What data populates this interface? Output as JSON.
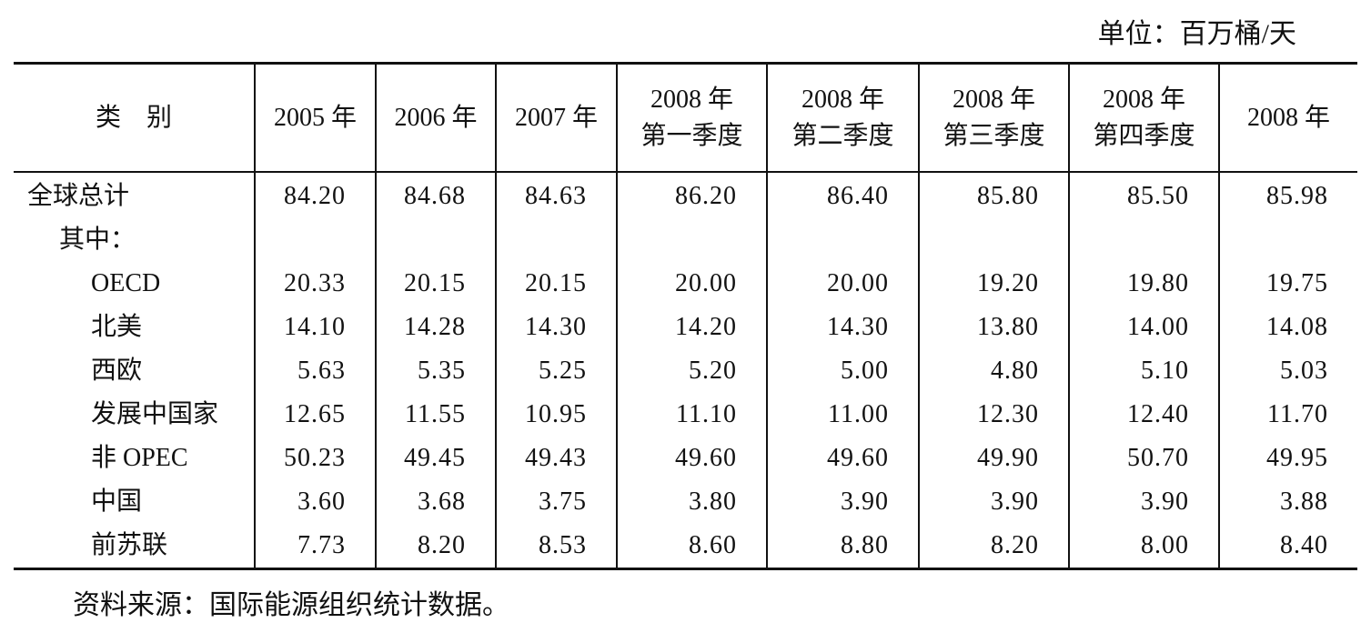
{
  "unit": "单位：百万桶/天",
  "table": {
    "header": [
      "类　别",
      "2005 年",
      "2006 年",
      "2007 年",
      "2008 年\n第一季度",
      "2008 年\n第二季度",
      "2008 年\n第三季度",
      "2008 年\n第四季度",
      "2008 年"
    ],
    "rows": [
      [
        "全球总计",
        "84.20",
        "84.68",
        "84.63",
        "86.20",
        "86.40",
        "85.80",
        "85.50",
        "85.98"
      ],
      [
        "其中："
      ],
      [
        "OECD",
        "20.33",
        "20.15",
        "20.15",
        "20.00",
        "20.00",
        "19.20",
        "19.80",
        "19.75"
      ],
      [
        "北美",
        "14.10",
        "14.28",
        "14.30",
        "14.20",
        "14.30",
        "13.80",
        "14.00",
        "14.08"
      ],
      [
        "西欧",
        "5.63",
        "5.35",
        "5.25",
        "5.20",
        "5.00",
        "4.80",
        "5.10",
        "5.03"
      ],
      [
        "发展中国家",
        "12.65",
        "11.55",
        "10.95",
        "11.10",
        "11.00",
        "12.30",
        "12.40",
        "11.70"
      ],
      [
        "非 OPEC",
        "50.23",
        "49.45",
        "49.43",
        "49.60",
        "49.60",
        "49.90",
        "50.70",
        "49.95"
      ],
      [
        "中国",
        "3.60",
        "3.68",
        "3.75",
        "3.80",
        "3.90",
        "3.90",
        "3.90",
        "3.88"
      ],
      [
        "前苏联",
        "7.73",
        "8.20",
        "8.53",
        "8.60",
        "8.80",
        "8.20",
        "8.00",
        "8.40"
      ]
    ]
  },
  "source": "资料来源：国际能源组织统计数据。"
}
